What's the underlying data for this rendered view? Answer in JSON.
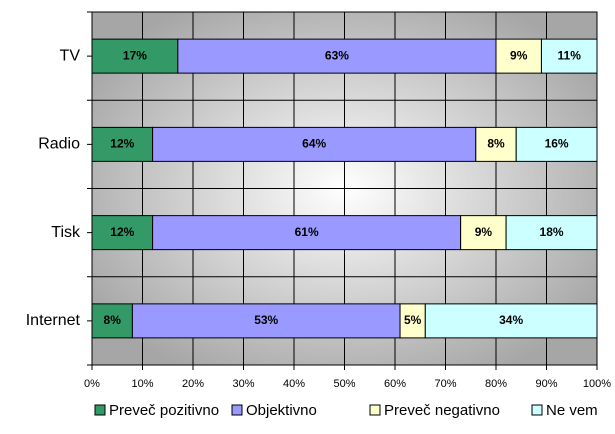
{
  "chart_data": {
    "type": "stacked-bar",
    "categories": [
      "TV",
      "Radio",
      "Tisk",
      "Internet"
    ],
    "series": [
      {
        "name": "Preveč pozitivno",
        "color": "#339966",
        "values": [
          17,
          12,
          12,
          8
        ],
        "value_labels": [
          "17%",
          "12%",
          "12%",
          "8%"
        ]
      },
      {
        "name": "Objektivno",
        "color": "#9999ff",
        "values": [
          63,
          64,
          61,
          53
        ],
        "value_labels": [
          "63%",
          "64%",
          "61%",
          "53%"
        ]
      },
      {
        "name": "Preveč negativno",
        "color": "#ffffcc",
        "values": [
          9,
          8,
          9,
          5
        ],
        "value_labels": [
          "9%",
          "8%",
          "9%",
          "5%"
        ]
      },
      {
        "name": "Ne vem",
        "color": "#ccffff",
        "values": [
          11,
          16,
          18,
          34
        ],
        "value_labels": [
          "11%",
          "16%",
          "18%",
          "34%"
        ]
      }
    ],
    "xlim": [
      0,
      100
    ],
    "xticks": [
      {
        "value": 0,
        "label": "0%"
      },
      {
        "value": 10,
        "label": "10%"
      },
      {
        "value": 20,
        "label": "20%"
      },
      {
        "value": 30,
        "label": "30%"
      },
      {
        "value": 40,
        "label": "40%"
      },
      {
        "value": 50,
        "label": "50%"
      },
      {
        "value": 60,
        "label": "60%"
      },
      {
        "value": 70,
        "label": "70%"
      },
      {
        "value": 80,
        "label": "80%"
      },
      {
        "value": 90,
        "label": "90%"
      },
      {
        "value": 100,
        "label": "100%"
      }
    ],
    "grid": true,
    "legend": "bottom"
  }
}
